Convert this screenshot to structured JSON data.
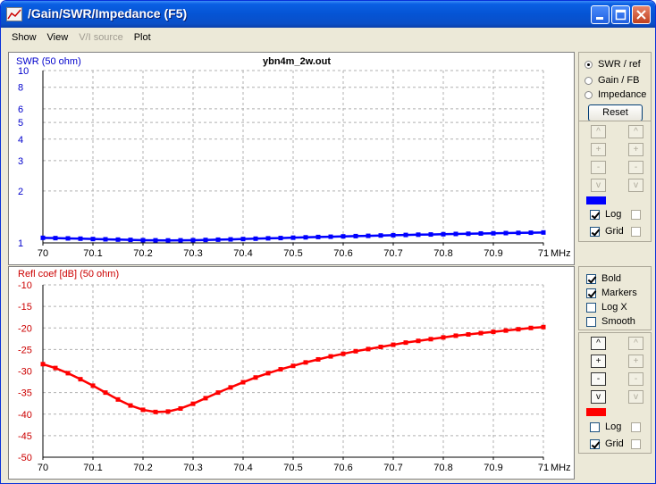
{
  "window": {
    "title": "/Gain/SWR/Impedance (F5)"
  },
  "menu": [
    {
      "label": "Show",
      "disabled": false
    },
    {
      "label": "View",
      "disabled": false
    },
    {
      "label": "V/I source",
      "disabled": true
    },
    {
      "label": "Plot",
      "disabled": false
    }
  ],
  "plot_file": "ybn4m_2w.out",
  "right_top": {
    "radios": [
      {
        "label": "SWR / ref",
        "selected": true
      },
      {
        "label": "Gain / FB",
        "selected": false
      },
      {
        "label": "Impedance",
        "selected": false
      }
    ],
    "reset_label": "Reset",
    "swatch_color": "#0000ff",
    "log_label": "Log",
    "grid_label": "Grid"
  },
  "right_bottom": {
    "options": [
      {
        "label": "Bold",
        "checked": true
      },
      {
        "label": "Markers",
        "checked": true
      },
      {
        "label": "Log X",
        "checked": false
      },
      {
        "label": "Smooth",
        "checked": false
      }
    ],
    "swatch_color": "#ff0000",
    "log_label": "Log",
    "grid_label": "Grid"
  },
  "chart_data": [
    {
      "type": "line",
      "title": "ybn4m_2w.out",
      "ylabel": "SWR (50 ohm)",
      "xunit": "MHz",
      "log_y": true,
      "grid": true,
      "color": "#0000ff",
      "ylim": [
        1,
        10
      ],
      "yticks": [
        "1",
        "2",
        "3",
        "4",
        "5",
        "6",
        "8",
        "10"
      ],
      "xticks": [
        "70",
        "70.1",
        "70.2",
        "70.3",
        "70.4",
        "70.5",
        "70.6",
        "70.7",
        "70.8",
        "70.9",
        "71"
      ],
      "x": [
        70.0,
        70.025,
        70.05,
        70.075,
        70.1,
        70.125,
        70.15,
        70.175,
        70.2,
        70.225,
        70.25,
        70.275,
        70.3,
        70.325,
        70.35,
        70.375,
        70.4,
        70.425,
        70.45,
        70.475,
        70.5,
        70.525,
        70.55,
        70.575,
        70.6,
        70.625,
        70.65,
        70.675,
        70.7,
        70.725,
        70.75,
        70.775,
        70.8,
        70.825,
        70.85,
        70.875,
        70.9,
        70.925,
        70.95,
        70.975,
        71.0
      ],
      "y": [
        1.07,
        1.066,
        1.062,
        1.058,
        1.053,
        1.049,
        1.045,
        1.041,
        1.037,
        1.035,
        1.034,
        1.035,
        1.037,
        1.04,
        1.044,
        1.048,
        1.053,
        1.058,
        1.063,
        1.067,
        1.072,
        1.077,
        1.082,
        1.086,
        1.091,
        1.095,
        1.099,
        1.104,
        1.108,
        1.112,
        1.116,
        1.119,
        1.123,
        1.127,
        1.13,
        1.134,
        1.137,
        1.14,
        1.143,
        1.146,
        1.149
      ]
    },
    {
      "type": "line",
      "ylabel": "Refl coef [dB] (50 ohm)",
      "xunit": "MHz",
      "grid": true,
      "color": "#ff0000",
      "ylim": [
        -50,
        -10
      ],
      "yticks": [
        "-10",
        "-15",
        "-20",
        "-25",
        "-30",
        "-35",
        "-40",
        "-45",
        "-50"
      ],
      "xticks": [
        "70",
        "70.1",
        "70.2",
        "70.3",
        "70.4",
        "70.5",
        "70.6",
        "70.7",
        "70.8",
        "70.9",
        "71"
      ],
      "x": [
        70.0,
        70.025,
        70.05,
        70.075,
        70.1,
        70.125,
        70.15,
        70.175,
        70.2,
        70.225,
        70.25,
        70.275,
        70.3,
        70.325,
        70.35,
        70.375,
        70.4,
        70.425,
        70.45,
        70.475,
        70.5,
        70.525,
        70.55,
        70.575,
        70.6,
        70.625,
        70.65,
        70.675,
        70.7,
        70.725,
        70.75,
        70.775,
        70.8,
        70.825,
        70.85,
        70.875,
        70.9,
        70.925,
        70.95,
        70.975,
        71.0
      ],
      "y": [
        -28.4,
        -29.3,
        -30.5,
        -31.9,
        -33.4,
        -35.0,
        -36.6,
        -38.0,
        -39.0,
        -39.5,
        -39.4,
        -38.7,
        -37.6,
        -36.3,
        -35.0,
        -33.8,
        -32.6,
        -31.5,
        -30.5,
        -29.6,
        -28.8,
        -28.0,
        -27.3,
        -26.6,
        -26.0,
        -25.4,
        -24.9,
        -24.4,
        -23.9,
        -23.4,
        -23.0,
        -22.6,
        -22.2,
        -21.8,
        -21.5,
        -21.2,
        -20.9,
        -20.6,
        -20.3,
        -20.0,
        -19.8
      ]
    }
  ]
}
